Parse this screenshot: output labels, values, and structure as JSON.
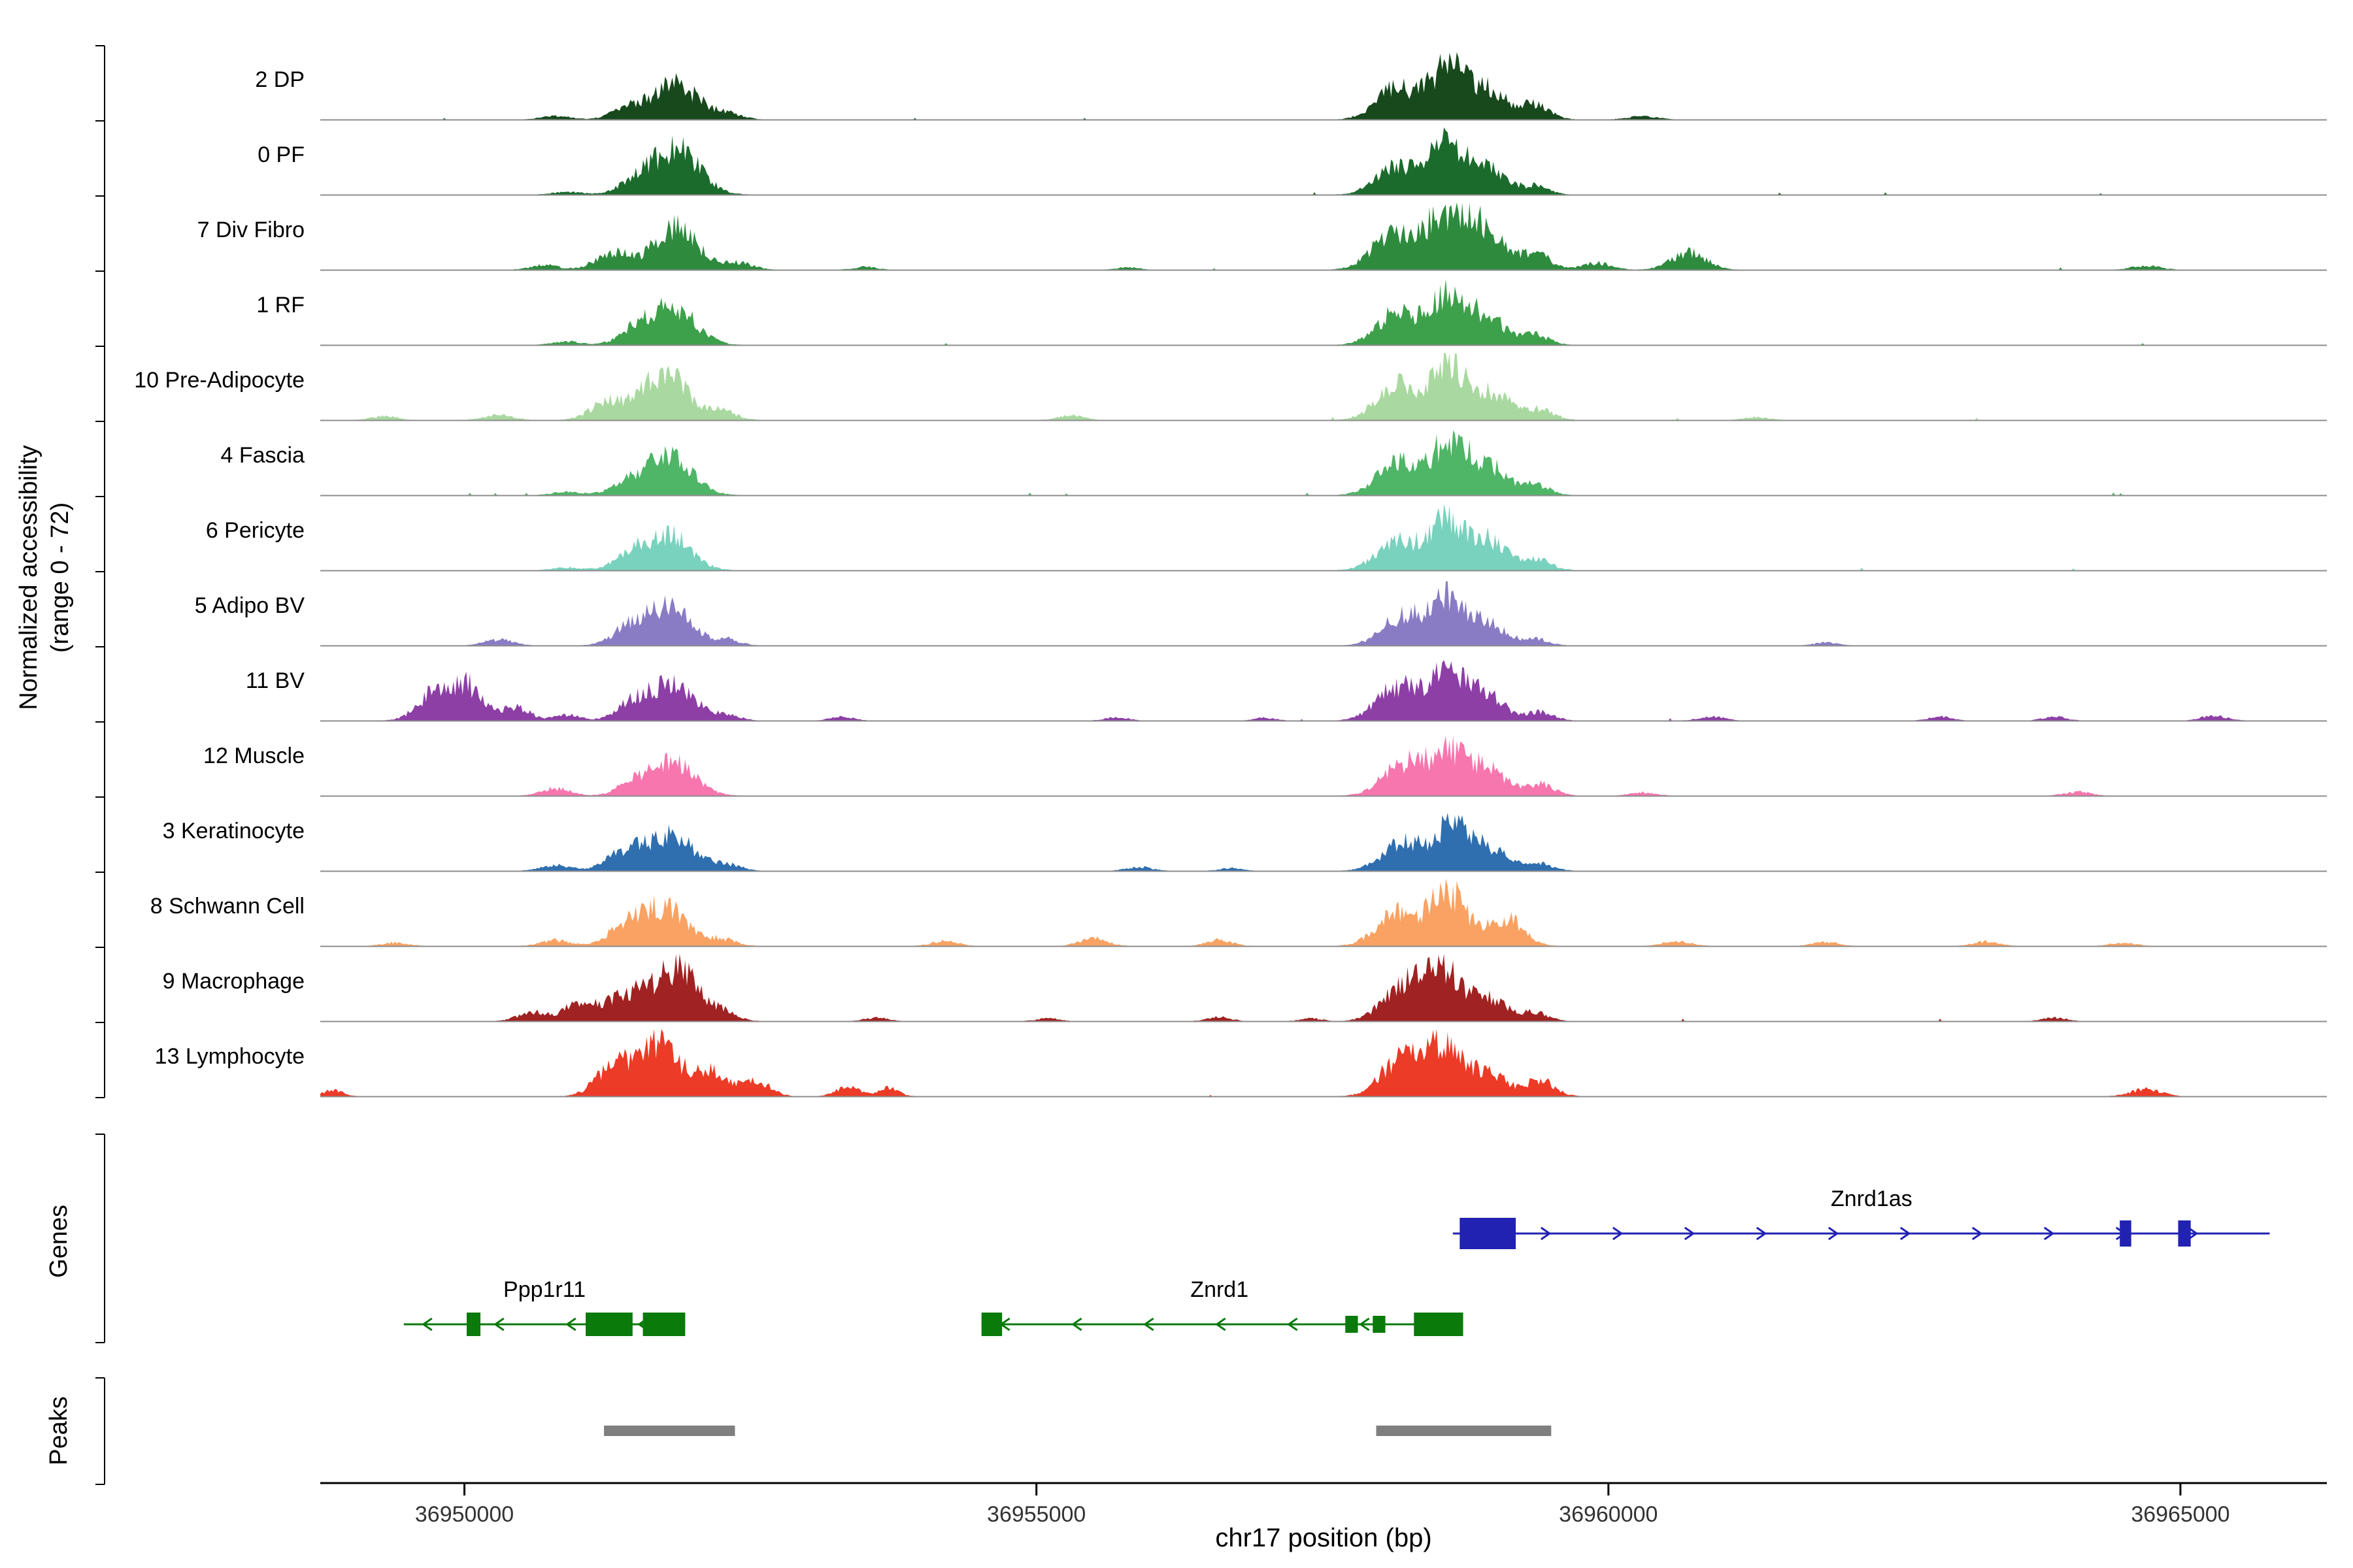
{
  "chart_data": {
    "type": "area",
    "description": "Genome browser chromatin accessibility tracks by cell type with gene models and peak calls",
    "x_axis": {
      "label": "chr17 position (bp)",
      "range_bp": [
        36948740,
        36966280
      ],
      "ticks": [
        36950000,
        36955000,
        36960000,
        36965000
      ]
    },
    "y_axis": {
      "label": "Normalized accessibility",
      "sublabel": "(range 0 - 72)",
      "range": [
        0,
        72
      ]
    },
    "section_labels": {
      "genes": "Genes",
      "peaks": "Peaks"
    },
    "tracks": [
      {
        "label": "2 DP",
        "color": "#17491d",
        "bumps": [
          [
            36950800,
            250,
            0.06
          ],
          [
            36951450,
            300,
            0.2
          ],
          [
            36951850,
            380,
            0.62
          ],
          [
            36952300,
            250,
            0.1
          ],
          [
            36958150,
            350,
            0.55
          ],
          [
            36958600,
            320,
            0.88
          ],
          [
            36958950,
            300,
            0.5
          ],
          [
            36959350,
            260,
            0.25
          ],
          [
            36960300,
            250,
            0.06
          ]
        ]
      },
      {
        "label": "0 PF",
        "color": "#1b6b2d",
        "bumps": [
          [
            36950900,
            250,
            0.05
          ],
          [
            36951500,
            300,
            0.2
          ],
          [
            36951850,
            400,
            0.78
          ],
          [
            36958150,
            350,
            0.5
          ],
          [
            36958600,
            320,
            0.92
          ],
          [
            36958950,
            300,
            0.4
          ],
          [
            36959350,
            250,
            0.15
          ]
        ]
      },
      {
        "label": "7 Div Fibro",
        "color": "#2e8b3e",
        "bumps": [
          [
            36950700,
            250,
            0.08
          ],
          [
            36951300,
            300,
            0.3
          ],
          [
            36951850,
            380,
            0.72
          ],
          [
            36952400,
            250,
            0.12
          ],
          [
            36953500,
            200,
            0.05
          ],
          [
            36955800,
            200,
            0.04
          ],
          [
            36958100,
            350,
            0.6
          ],
          [
            36958550,
            320,
            0.95
          ],
          [
            36958900,
            320,
            0.75
          ],
          [
            36959350,
            260,
            0.3
          ],
          [
            36959900,
            250,
            0.12
          ],
          [
            36960700,
            300,
            0.3
          ],
          [
            36964700,
            250,
            0.07
          ]
        ]
      },
      {
        "label": "1 RF",
        "color": "#3da14b",
        "bumps": [
          [
            36950900,
            250,
            0.06
          ],
          [
            36951500,
            300,
            0.22
          ],
          [
            36951820,
            380,
            0.68
          ],
          [
            36958150,
            350,
            0.55
          ],
          [
            36958600,
            320,
            0.85
          ],
          [
            36958950,
            300,
            0.45
          ],
          [
            36959350,
            250,
            0.18
          ]
        ]
      },
      {
        "label": "10 Pre-Adipocyte",
        "color": "#a9d9a0",
        "bumps": [
          [
            36949300,
            220,
            0.07
          ],
          [
            36950300,
            250,
            0.09
          ],
          [
            36951250,
            300,
            0.3
          ],
          [
            36951750,
            400,
            0.8
          ],
          [
            36952250,
            250,
            0.15
          ],
          [
            36955300,
            220,
            0.08
          ],
          [
            36958150,
            350,
            0.6
          ],
          [
            36958600,
            320,
            0.95
          ],
          [
            36959000,
            300,
            0.45
          ],
          [
            36959400,
            250,
            0.18
          ],
          [
            36961300,
            220,
            0.05
          ]
        ]
      },
      {
        "label": "4 Fascia",
        "color": "#4fb567",
        "bumps": [
          [
            36950900,
            250,
            0.06
          ],
          [
            36951450,
            300,
            0.25
          ],
          [
            36951800,
            380,
            0.65
          ],
          [
            36958150,
            350,
            0.55
          ],
          [
            36958600,
            320,
            0.9
          ],
          [
            36958950,
            300,
            0.5
          ],
          [
            36959350,
            250,
            0.2
          ]
        ]
      },
      {
        "label": "6 Pericyte",
        "color": "#79d2bd",
        "bumps": [
          [
            36950900,
            250,
            0.05
          ],
          [
            36951450,
            300,
            0.22
          ],
          [
            36951780,
            380,
            0.62
          ],
          [
            36958150,
            350,
            0.5
          ],
          [
            36958600,
            330,
            0.88
          ],
          [
            36958980,
            300,
            0.48
          ],
          [
            36959380,
            250,
            0.18
          ]
        ]
      },
      {
        "label": "5 Adipo BV",
        "color": "#8a7cc4",
        "bumps": [
          [
            36950300,
            250,
            0.1
          ],
          [
            36951450,
            300,
            0.3
          ],
          [
            36951800,
            380,
            0.65
          ],
          [
            36952300,
            220,
            0.1
          ],
          [
            36958200,
            350,
            0.5
          ],
          [
            36958600,
            320,
            0.78
          ],
          [
            36958950,
            300,
            0.35
          ],
          [
            36959350,
            230,
            0.12
          ],
          [
            36961900,
            200,
            0.05
          ]
        ]
      },
      {
        "label": "11 BV",
        "color": "#8d3fa6",
        "bumps": [
          [
            36949750,
            300,
            0.5
          ],
          [
            36950050,
            260,
            0.55
          ],
          [
            36950450,
            250,
            0.22
          ],
          [
            36950900,
            220,
            0.1
          ],
          [
            36951500,
            300,
            0.35
          ],
          [
            36951850,
            350,
            0.62
          ],
          [
            36952300,
            220,
            0.1
          ],
          [
            36953300,
            200,
            0.07
          ],
          [
            36955700,
            200,
            0.06
          ],
          [
            36957000,
            180,
            0.05
          ],
          [
            36958150,
            350,
            0.6
          ],
          [
            36958600,
            320,
            0.82
          ],
          [
            36958950,
            300,
            0.4
          ],
          [
            36959400,
            240,
            0.15
          ],
          [
            36960900,
            220,
            0.07
          ],
          [
            36962900,
            200,
            0.07
          ],
          [
            36963900,
            200,
            0.07
          ],
          [
            36965300,
            220,
            0.09
          ]
        ]
      },
      {
        "label": "12 Muscle",
        "color": "#f776ae",
        "bumps": [
          [
            36950800,
            250,
            0.13
          ],
          [
            36951500,
            300,
            0.25
          ],
          [
            36951850,
            350,
            0.58
          ],
          [
            36958200,
            350,
            0.55
          ],
          [
            36958600,
            320,
            0.75
          ],
          [
            36958950,
            300,
            0.45
          ],
          [
            36959400,
            250,
            0.2
          ],
          [
            36960300,
            220,
            0.06
          ],
          [
            36964100,
            220,
            0.07
          ]
        ]
      },
      {
        "label": "3 Keratinocyte",
        "color": "#2f6fb0",
        "bumps": [
          [
            36950800,
            260,
            0.1
          ],
          [
            36951400,
            320,
            0.3
          ],
          [
            36951800,
            400,
            0.6
          ],
          [
            36952300,
            250,
            0.1
          ],
          [
            36955900,
            220,
            0.07
          ],
          [
            36956700,
            200,
            0.05
          ],
          [
            36958200,
            350,
            0.5
          ],
          [
            36958650,
            330,
            0.8
          ],
          [
            36959000,
            300,
            0.3
          ],
          [
            36959400,
            240,
            0.12
          ]
        ]
      },
      {
        "label": "8 Schwann Cell",
        "color": "#f9a263",
        "bumps": [
          [
            36949400,
            220,
            0.06
          ],
          [
            36950800,
            250,
            0.1
          ],
          [
            36951400,
            300,
            0.3
          ],
          [
            36951750,
            380,
            0.68
          ],
          [
            36952250,
            240,
            0.12
          ],
          [
            36954200,
            220,
            0.09
          ],
          [
            36955500,
            240,
            0.13
          ],
          [
            36956600,
            220,
            0.1
          ],
          [
            36958150,
            350,
            0.55
          ],
          [
            36958600,
            330,
            0.92
          ],
          [
            36959100,
            300,
            0.48
          ],
          [
            36960600,
            240,
            0.09
          ],
          [
            36961900,
            220,
            0.07
          ],
          [
            36963300,
            220,
            0.08
          ],
          [
            36964500,
            220,
            0.06
          ]
        ]
      },
      {
        "label": "9 Macrophage",
        "color": "#a12222",
        "bumps": [
          [
            36950600,
            250,
            0.16
          ],
          [
            36951050,
            300,
            0.38
          ],
          [
            36951450,
            300,
            0.45
          ],
          [
            36951850,
            340,
            0.95
          ],
          [
            36952250,
            240,
            0.2
          ],
          [
            36953600,
            200,
            0.06
          ],
          [
            36955100,
            200,
            0.05
          ],
          [
            36956600,
            200,
            0.07
          ],
          [
            36957400,
            180,
            0.05
          ],
          [
            36958200,
            350,
            0.6
          ],
          [
            36958550,
            320,
            0.85
          ],
          [
            36958950,
            300,
            0.38
          ],
          [
            36959350,
            240,
            0.15
          ],
          [
            36963900,
            200,
            0.06
          ]
        ]
      },
      {
        "label": "13 Lymphocyte",
        "color": "#ec3b26",
        "bumps": [
          [
            36948850,
            180,
            0.1
          ],
          [
            36951300,
            300,
            0.5
          ],
          [
            36951700,
            360,
            0.9
          ],
          [
            36952150,
            280,
            0.45
          ],
          [
            36952550,
            240,
            0.28
          ],
          [
            36953350,
            200,
            0.16
          ],
          [
            36953700,
            180,
            0.14
          ],
          [
            36958200,
            350,
            0.68
          ],
          [
            36958550,
            320,
            0.85
          ],
          [
            36958950,
            300,
            0.42
          ],
          [
            36959400,
            250,
            0.28
          ],
          [
            36964700,
            260,
            0.12
          ]
        ]
      }
    ],
    "genes": [
      {
        "name": "Ppp1r11",
        "color": "#0a7a0a",
        "strand": "-",
        "start": 36949470,
        "end": 36951930,
        "row": 1,
        "label_bp": 36950700,
        "exons": [
          [
            36950020,
            36950140,
            36
          ],
          [
            36951060,
            36951470,
            36
          ],
          [
            36951560,
            36951930,
            36
          ]
        ]
      },
      {
        "name": "Znrd1",
        "color": "#0a7a0a",
        "strand": "-",
        "start": 36954520,
        "end": 36958730,
        "row": 1,
        "label_bp": 36956600,
        "exons": [
          [
            36954520,
            36954700,
            36
          ],
          [
            36957700,
            36957810,
            26
          ],
          [
            36957940,
            36958050,
            26
          ],
          [
            36958300,
            36958730,
            36
          ]
        ]
      },
      {
        "name": "Znrd1as",
        "color": "#2222b2",
        "strand": "+",
        "start": 36958640,
        "end": 36965780,
        "row": 0,
        "label_bp": 36962300,
        "exons": [
          [
            36958700,
            36959190,
            48
          ],
          [
            36964470,
            36964570,
            40
          ],
          [
            36964980,
            36965090,
            40
          ]
        ]
      }
    ],
    "peak_calls_bp": [
      [
        36951220,
        36952365
      ],
      [
        36957970,
        36959500
      ]
    ]
  },
  "colors": {
    "baseline": "#8c8c8c",
    "axis": "#000000",
    "peak_bar": "#7f7f7f"
  }
}
